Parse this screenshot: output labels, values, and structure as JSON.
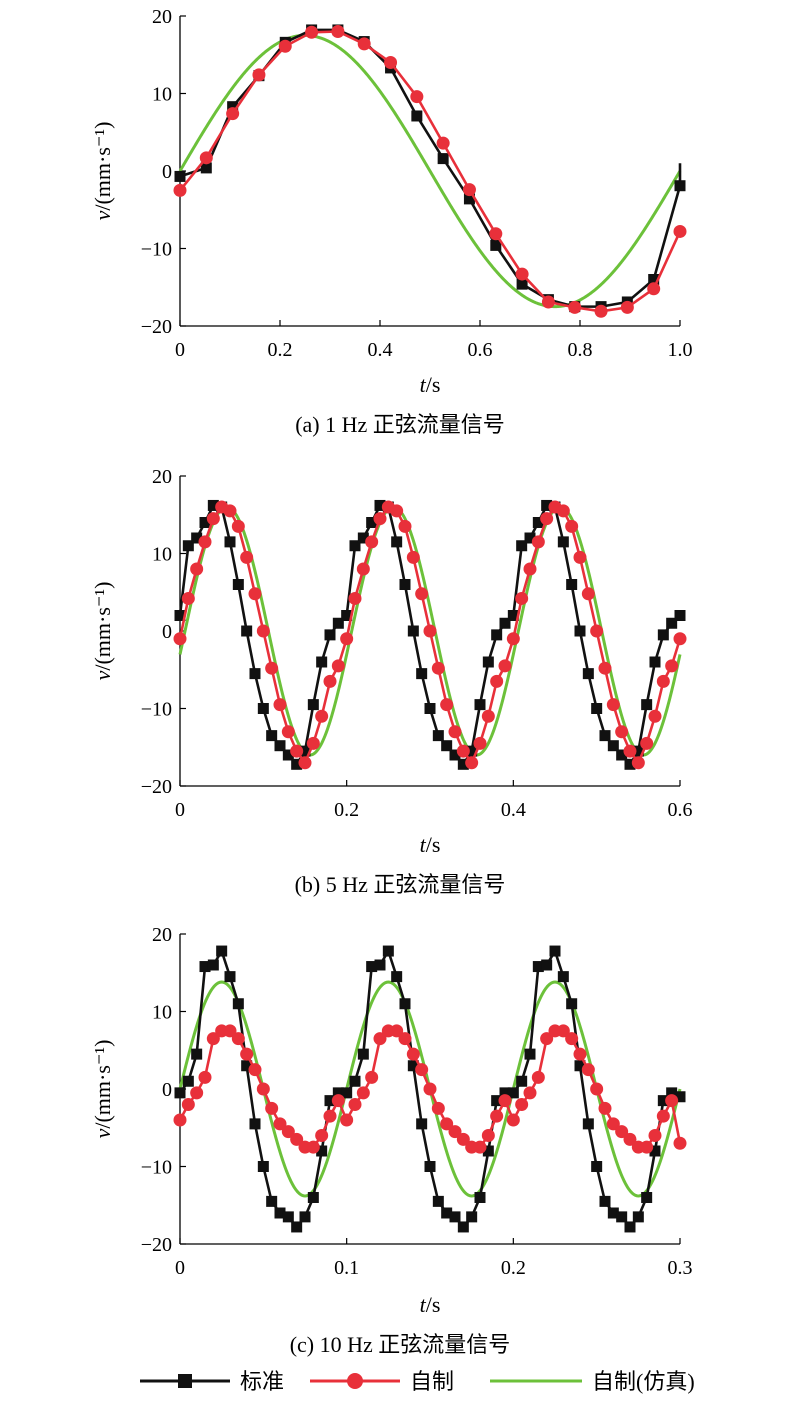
{
  "figure_captions": [
    "(a) 1 Hz 正弦流量信号",
    "(b) 5 Hz 正弦流量信号",
    "(c) 10 Hz 正弦流量信号"
  ],
  "legend": {
    "position": "bottom",
    "entries": [
      {
        "label": "标准",
        "marker": "square",
        "color": "#111111"
      },
      {
        "label": "自制",
        "marker": "circle",
        "color": "#e8303a"
      },
      {
        "label": "自制(仿真)",
        "marker": "none",
        "color": "#6cc13a"
      }
    ]
  },
  "chart_data": [
    {
      "type": "line",
      "caption": "(a) 1 Hz 正弦流量信号",
      "xlabel": "t/s",
      "ylabel": "v/(mm·s⁻¹)",
      "xlim": [
        0,
        1.0
      ],
      "ylim": [
        -20,
        20
      ],
      "xticks": [
        0,
        0.2,
        0.4,
        0.6,
        0.8,
        1.0
      ],
      "xtick_labels": [
        "0",
        "0.2",
        "0.4",
        "0.6",
        "0.8",
        "1.0"
      ],
      "yticks": [
        -20,
        -10,
        0,
        10,
        20
      ],
      "ytick_labels": [
        "−20",
        "−10",
        "0",
        "10",
        "20"
      ],
      "series": [
        {
          "name": "标准",
          "color": "#111111",
          "marker": "square",
          "x": [
            0,
            0.0526,
            0.1053,
            0.1579,
            0.2105,
            0.2632,
            0.3158,
            0.3684,
            0.4211,
            0.4737,
            0.5263,
            0.5789,
            0.6316,
            0.6842,
            0.7368,
            0.7895,
            0.8421,
            0.8947,
            0.9474,
            1.0
          ],
          "y": [
            -0.7,
            0.4,
            8.3,
            12.3,
            16.6,
            18.2,
            18.2,
            16.7,
            13.3,
            7.1,
            1.6,
            -3.6,
            -9.6,
            -14.6,
            -16.6,
            -17.5,
            -17.5,
            -16.9,
            -14.0,
            -1.9
          ],
          "tail_point": [
            1.0,
            1.0
          ]
        },
        {
          "name": "自制",
          "color": "#e8303a",
          "marker": "circle",
          "x": [
            0,
            0.0526,
            0.1053,
            0.1579,
            0.2105,
            0.2632,
            0.3158,
            0.3684,
            0.4211,
            0.4737,
            0.5263,
            0.5789,
            0.6316,
            0.6842,
            0.7368,
            0.7895,
            0.8421,
            0.8947,
            0.9474,
            1.0
          ],
          "y": [
            -2.5,
            1.7,
            7.4,
            12.4,
            16.1,
            17.9,
            18.0,
            16.4,
            14.0,
            9.6,
            3.6,
            -2.4,
            -8.1,
            -13.3,
            -16.9,
            -17.6,
            -18.1,
            -17.6,
            -15.2,
            -7.8
          ]
        },
        {
          "name": "自制(仿真)",
          "color": "#6cc13a",
          "marker": "none",
          "function": {
            "amplitude": 17.5,
            "frequency_hz": 1,
            "phase_rad": 0
          }
        }
      ]
    },
    {
      "type": "line",
      "caption": "(b) 5 Hz 正弦流量信号",
      "xlabel": "t/s",
      "ylabel": "v/(mm·s⁻¹)",
      "xlim": [
        0,
        0.6
      ],
      "ylim": [
        -20,
        20
      ],
      "xticks": [
        0,
        0.2,
        0.4,
        0.6
      ],
      "xtick_labels": [
        "0",
        "0.2",
        "0.4",
        "0.6"
      ],
      "yticks": [
        -20,
        -10,
        0,
        10,
        20
      ],
      "ytick_labels": [
        "−20",
        "−10",
        "0",
        "10",
        "20"
      ],
      "series": [
        {
          "name": "标准",
          "color": "#111111",
          "marker": "square",
          "period_s": 0.2,
          "periods": 3,
          "cycle_x": [
            0,
            0.01,
            0.02,
            0.03,
            0.04,
            0.05,
            0.06,
            0.07,
            0.08,
            0.09,
            0.1,
            0.11,
            0.12,
            0.13,
            0.14,
            0.15,
            0.16,
            0.17,
            0.18,
            0.19
          ],
          "cycle_y": [
            2.0,
            11.0,
            12.0,
            14.0,
            16.2,
            16.0,
            11.5,
            6.0,
            0.0,
            -5.5,
            -10.0,
            -13.5,
            -14.8,
            -16.0,
            -17.2,
            -15.5,
            -9.5,
            -4.0,
            -0.5,
            1.0
          ],
          "end_point": [
            0.6,
            2.0
          ]
        },
        {
          "name": "自制",
          "color": "#e8303a",
          "marker": "circle",
          "period_s": 0.2,
          "periods": 3,
          "cycle_x": [
            0,
            0.01,
            0.02,
            0.03,
            0.04,
            0.05,
            0.06,
            0.07,
            0.08,
            0.09,
            0.1,
            0.11,
            0.12,
            0.13,
            0.14,
            0.15,
            0.16,
            0.17,
            0.18,
            0.19
          ],
          "cycle_y": [
            -1.0,
            4.2,
            8.0,
            11.5,
            14.5,
            16.0,
            15.5,
            13.5,
            9.5,
            4.8,
            0.0,
            -4.8,
            -9.5,
            -13.0,
            -15.5,
            -17.0,
            -14.5,
            -11.0,
            -6.5,
            -4.5
          ],
          "end_point": [
            0.6,
            -1.0
          ]
        },
        {
          "name": "自制(仿真)",
          "color": "#6cc13a",
          "marker": "none",
          "function": {
            "amplitude": 16,
            "frequency_hz": 5,
            "phase_rad": -0.19
          }
        }
      ]
    },
    {
      "type": "line",
      "caption": "(c) 10 Hz 正弦流量信号",
      "xlabel": "t/s",
      "ylabel": "v/(mm·s⁻¹)",
      "xlim": [
        0,
        0.3
      ],
      "ylim": [
        -20,
        20
      ],
      "xticks": [
        0,
        0.1,
        0.2,
        0.3
      ],
      "xtick_labels": [
        "0",
        "0.1",
        "0.2",
        "0.3"
      ],
      "yticks": [
        -20,
        -10,
        0,
        10,
        20
      ],
      "ytick_labels": [
        "−20",
        "−10",
        "0",
        "10",
        "20"
      ],
      "series": [
        {
          "name": "标准",
          "color": "#111111",
          "marker": "square",
          "period_s": 0.1,
          "periods": 3,
          "cycle_x": [
            0,
            0.005,
            0.01,
            0.015,
            0.02,
            0.025,
            0.03,
            0.035,
            0.04,
            0.045,
            0.05,
            0.055,
            0.06,
            0.065,
            0.07,
            0.075,
            0.08,
            0.085,
            0.09,
            0.095
          ],
          "cycle_y": [
            -0.5,
            1.0,
            4.5,
            15.8,
            16.0,
            17.8,
            14.5,
            11.0,
            3.0,
            -4.5,
            -10.0,
            -14.5,
            -16.0,
            -16.5,
            -17.8,
            -16.5,
            -14.0,
            -8.0,
            -1.5,
            -0.5
          ],
          "end_point": [
            0.3,
            -1.0
          ]
        },
        {
          "name": "自制",
          "color": "#e8303a",
          "marker": "circle",
          "period_s": 0.1,
          "periods": 3,
          "cycle_x": [
            0,
            0.005,
            0.01,
            0.015,
            0.02,
            0.025,
            0.03,
            0.035,
            0.04,
            0.045,
            0.05,
            0.055,
            0.06,
            0.065,
            0.07,
            0.075,
            0.08,
            0.085,
            0.09,
            0.095
          ],
          "cycle_y": [
            -4.0,
            -2.0,
            -0.5,
            1.5,
            6.5,
            7.5,
            7.5,
            6.5,
            4.5,
            2.5,
            0.0,
            -2.5,
            -4.5,
            -5.5,
            -6.5,
            -7.5,
            -7.5,
            -6.0,
            -3.5,
            -1.5
          ],
          "end_point": [
            0.3,
            -7.0
          ]
        },
        {
          "name": "自制(仿真)",
          "color": "#6cc13a",
          "marker": "none",
          "function": {
            "amplitude": 13.8,
            "frequency_hz": 10,
            "phase_rad": 0
          }
        }
      ]
    }
  ]
}
